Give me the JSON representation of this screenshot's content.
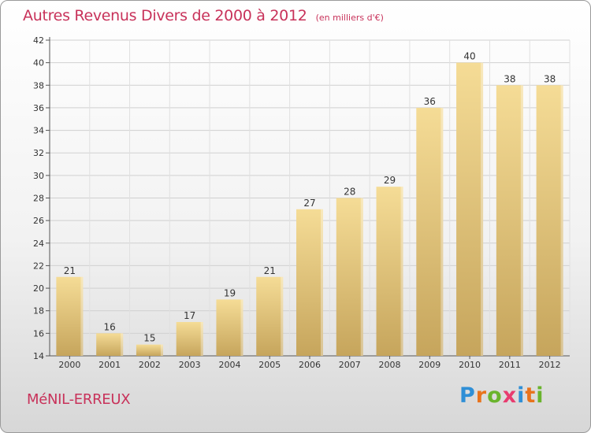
{
  "header": {
    "title": "Autres Revenus Divers de 2000 à 2012",
    "unit": "(en milliers d'€)"
  },
  "footer": {
    "location": "MéNIL-ERREUX",
    "logo_letters": [
      "P",
      "r",
      "o",
      "x",
      "i",
      "t",
      "i"
    ],
    "logo_colors": [
      "#2f8fd6",
      "#e8731c",
      "#6ab42d",
      "#e83c6f",
      "#2f8fd6",
      "#e8731c",
      "#6ab42d"
    ]
  },
  "chart_data": {
    "type": "bar",
    "categories": [
      "2000",
      "2001",
      "2002",
      "2003",
      "2004",
      "2005",
      "2006",
      "2007",
      "2008",
      "2009",
      "2010",
      "2011",
      "2012"
    ],
    "values": [
      21,
      16,
      15,
      17,
      19,
      21,
      27,
      28,
      29,
      36,
      40,
      38,
      38
    ],
    "ylim": [
      14,
      42
    ],
    "yticks": [
      14,
      16,
      18,
      20,
      22,
      24,
      26,
      28,
      30,
      32,
      34,
      36,
      38,
      40,
      42
    ],
    "grid": true,
    "bar_color_top": "#f5dc96",
    "bar_color_bottom": "#c6a55c"
  }
}
